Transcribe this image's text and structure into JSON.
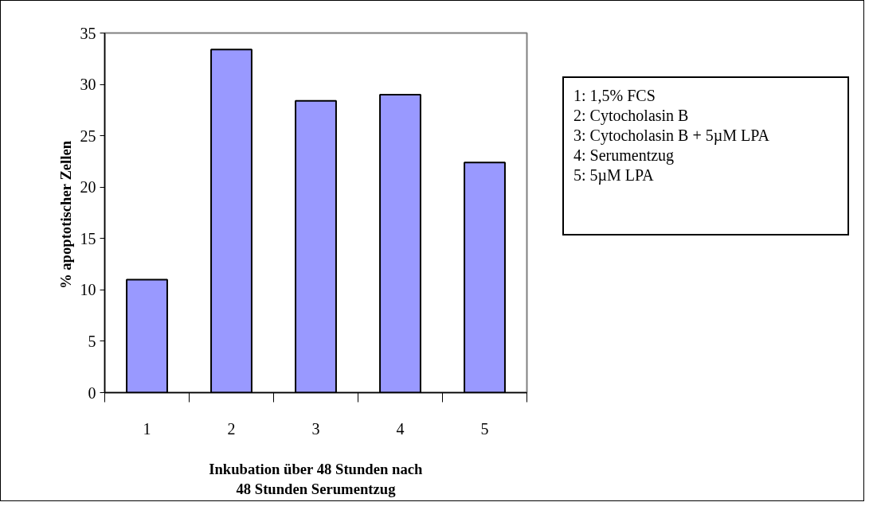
{
  "chart_data": {
    "type": "bar",
    "ylabel": "%  apoptotischer Zellen",
    "xlabel": "Inkubation über 48 Stunden nach 48 Stunden Serumentzug",
    "categories": [
      "1",
      "2",
      "3",
      "4",
      "5"
    ],
    "values": [
      11.0,
      33.4,
      28.4,
      29.0,
      22.4
    ],
    "color": "#9999ff",
    "ylim": [
      0,
      35
    ],
    "yticks": [
      0,
      5,
      10,
      15,
      20,
      25,
      30,
      35
    ],
    "grid": false,
    "annotations": [
      "1: 1,5% FCS",
      "2: Cytocholasin B",
      "3: Cytocholasin B + 5µM LPA",
      "4:  Serumentzug",
      "5: 5µM LPA"
    ]
  }
}
